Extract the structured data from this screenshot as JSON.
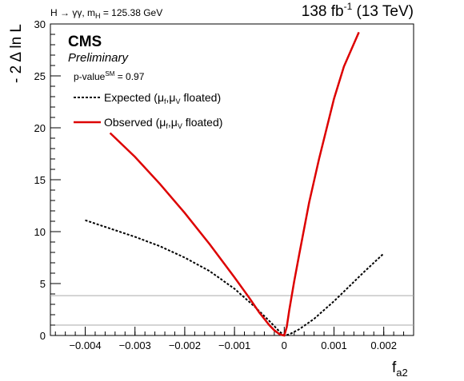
{
  "header": {
    "process": "H → γγ, m",
    "mass_sub": "H",
    "mass_value": " = 125.38 GeV",
    "lumi_prefix": "138 fb",
    "lumi_exp": "-1",
    "lumi_suffix": " (13 TeV)"
  },
  "label": {
    "experiment": "CMS",
    "status": "Preliminary",
    "pvalue_prefix": "p-value",
    "pvalue_sup": "SM",
    "pvalue_suffix": " = 0.97"
  },
  "chart_data": {
    "type": "line",
    "xlabel": "f",
    "xlabel_sub": "a2",
    "ylabel": "- 2 Δ ln L",
    "xlim": [
      -0.0047,
      0.0026
    ],
    "ylim": [
      0,
      30
    ],
    "x_ticks": [
      -0.004,
      -0.003,
      -0.002,
      -0.001,
      0,
      0.001,
      0.002
    ],
    "x_tick_labels": [
      "−0.004",
      "−0.003",
      "−0.002",
      "−0.001",
      "0",
      "0.001",
      "0.002"
    ],
    "y_ticks": [
      0,
      5,
      10,
      15,
      20,
      25,
      30
    ],
    "y_tick_labels": [
      "0",
      "5",
      "10",
      "15",
      "20",
      "25",
      "30"
    ],
    "reference_lines": [
      1,
      3.84
    ],
    "legend_placement": "top-left",
    "series": [
      {
        "name": "Expected",
        "legend_mu1": "μ",
        "legend_sub1": "f",
        "legend_sep": ",",
        "legend_mu2": "μ",
        "legend_sub2": "V",
        "legend_suffix": " floated)",
        "legend_prefix": "Expected (",
        "color": "#000000",
        "style": "dashed",
        "x": [
          -0.004,
          -0.0035,
          -0.003,
          -0.0025,
          -0.002,
          -0.0015,
          -0.001,
          -0.0006,
          -0.0003,
          -0.0001,
          0,
          0.0001,
          0.0003,
          0.0006,
          0.001,
          0.0013,
          0.0016,
          0.002
        ],
        "y": [
          11.1,
          10.3,
          9.5,
          8.6,
          7.5,
          6.2,
          4.5,
          2.8,
          1.4,
          0.4,
          0.0,
          0.1,
          0.6,
          1.6,
          3.3,
          4.7,
          6.1,
          7.9
        ]
      },
      {
        "name": "Observed",
        "legend_mu1": "μ",
        "legend_sub1": "f",
        "legend_sep": ",",
        "legend_mu2": "μ",
        "legend_sub2": "V",
        "legend_suffix": " floated)",
        "legend_prefix": "Observed (",
        "color": "#dd0000",
        "style": "solid",
        "x": [
          -0.0035,
          -0.003,
          -0.0025,
          -0.002,
          -0.0015,
          -0.001,
          -0.0007,
          -0.0005,
          -0.0003,
          -0.0002,
          -0.0001,
          -5e-05,
          0,
          5e-05,
          0.0001,
          0.0002,
          0.0003,
          0.0005,
          0.0007,
          0.001,
          0.0012,
          0.0015
        ],
        "y": [
          19.5,
          17.2,
          14.6,
          11.8,
          8.8,
          5.6,
          3.6,
          2.2,
          1.0,
          0.5,
          0.15,
          0.05,
          0.0,
          0.8,
          2.4,
          5.2,
          7.8,
          12.8,
          17.0,
          22.8,
          25.9,
          29.2
        ]
      }
    ]
  }
}
